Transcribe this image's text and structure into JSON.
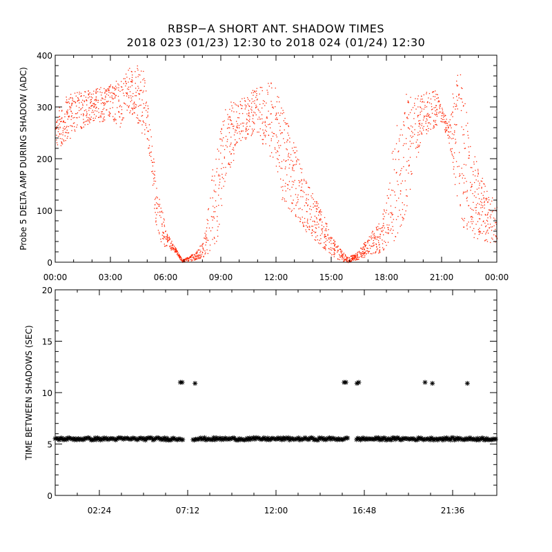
{
  "title_line1": "RBSP−A SHORT ANT. SHADOW TIMES",
  "title_line2": "2018 023 (01/23) 12:30 to 2018 024 (01/24) 12:30",
  "colors": {
    "top_series": "#ff2200",
    "bottom_series": "#000000",
    "axes": "#000000"
  },
  "chart_data": [
    {
      "type": "scatter",
      "ylabel": "Probe 5 DELTA AMP DURING SHADOW (ADC)",
      "xlabel": "",
      "xlim": [
        0,
        24
      ],
      "ylim": [
        0,
        400
      ],
      "xtick_labels": [
        "00:00",
        "03:00",
        "06:00",
        "09:00",
        "12:00",
        "15:00",
        "18:00",
        "21:00",
        "00:00"
      ],
      "ytick_labels": [
        "0",
        "100",
        "200",
        "300",
        "400"
      ],
      "grid": false,
      "series": [
        {
          "marker": "dot",
          "color": "#ff2200",
          "envelope_x": [
            0,
            0.3,
            0.5,
            0.8,
            1.2,
            2,
            3,
            3.5,
            4,
            4.3,
            4.8,
            5.2,
            5.4,
            5.6,
            5.8,
            6,
            6.5,
            6.9,
            7.6,
            8,
            8.2,
            8.6,
            8.8,
            9.2,
            9.5,
            10,
            11,
            11.3,
            11.8,
            12.3,
            13,
            13.6,
            14.5,
            15,
            15.4,
            15.9,
            16.4,
            16.8,
            17.2,
            17.7,
            18.1,
            18.4,
            18.9,
            19.3,
            19.9,
            20.6,
            21,
            21.4,
            21.6,
            21.8,
            22.1,
            22.5,
            23,
            23.5,
            23.9,
            24
          ],
          "envelope_low": [
            230,
            220,
            235,
            240,
            255,
            270,
            275,
            260,
            290,
            280,
            240,
            180,
            90,
            40,
            30,
            30,
            20,
            0,
            5,
            10,
            15,
            25,
            40,
            150,
            180,
            230,
            250,
            220,
            200,
            120,
            90,
            60,
            30,
            15,
            5,
            0,
            5,
            10,
            15,
            20,
            30,
            40,
            70,
            140,
            240,
            260,
            270,
            230,
            180,
            110,
            70,
            50,
            45,
            40,
            35,
            35
          ],
          "envelope_high": [
            290,
            310,
            320,
            325,
            330,
            335,
            345,
            355,
            375,
            385,
            370,
            250,
            180,
            130,
            110,
            60,
            30,
            5,
            20,
            40,
            80,
            200,
            230,
            300,
            310,
            315,
            340,
            350,
            355,
            300,
            230,
            160,
            100,
            50,
            30,
            10,
            20,
            40,
            60,
            80,
            150,
            250,
            330,
            320,
            325,
            340,
            300,
            270,
            340,
            360,
            380,
            250,
            180,
            140,
            120,
            110
          ],
          "note": "dense scatter of samples; ~rises to ~380 near 04:30, dips to ~0 near 06:50 and 16:00, recovers to ~350 near 11:30 and ~330 near 20:00"
        }
      ]
    },
    {
      "type": "scatter",
      "ylabel": "TIME BETWEEN SHADOWS (SEC)",
      "xlabel": "",
      "xlim": [
        0,
        24
      ],
      "ylim": [
        0,
        20
      ],
      "xtick_labels": [
        "02:24",
        "07:12",
        "12:00",
        "16:48",
        "21:36"
      ],
      "ytick_labels": [
        "0",
        "5",
        "10",
        "15",
        "20"
      ],
      "grid": false,
      "series": [
        {
          "marker": "asterisk",
          "color": "#000000",
          "baseline_value": 5.5,
          "baseline_gaps": [
            [
              6.95,
              7.45
            ],
            [
              15.9,
              16.35
            ]
          ],
          "spike_x": [
            6.8,
            6.9,
            7.6,
            15.7,
            15.8,
            16.4,
            16.5,
            20.1,
            20.5,
            22.4
          ],
          "spike_y": [
            11,
            11,
            10.9,
            11,
            11,
            10.9,
            11,
            11,
            10.9,
            10.9
          ]
        }
      ]
    }
  ]
}
